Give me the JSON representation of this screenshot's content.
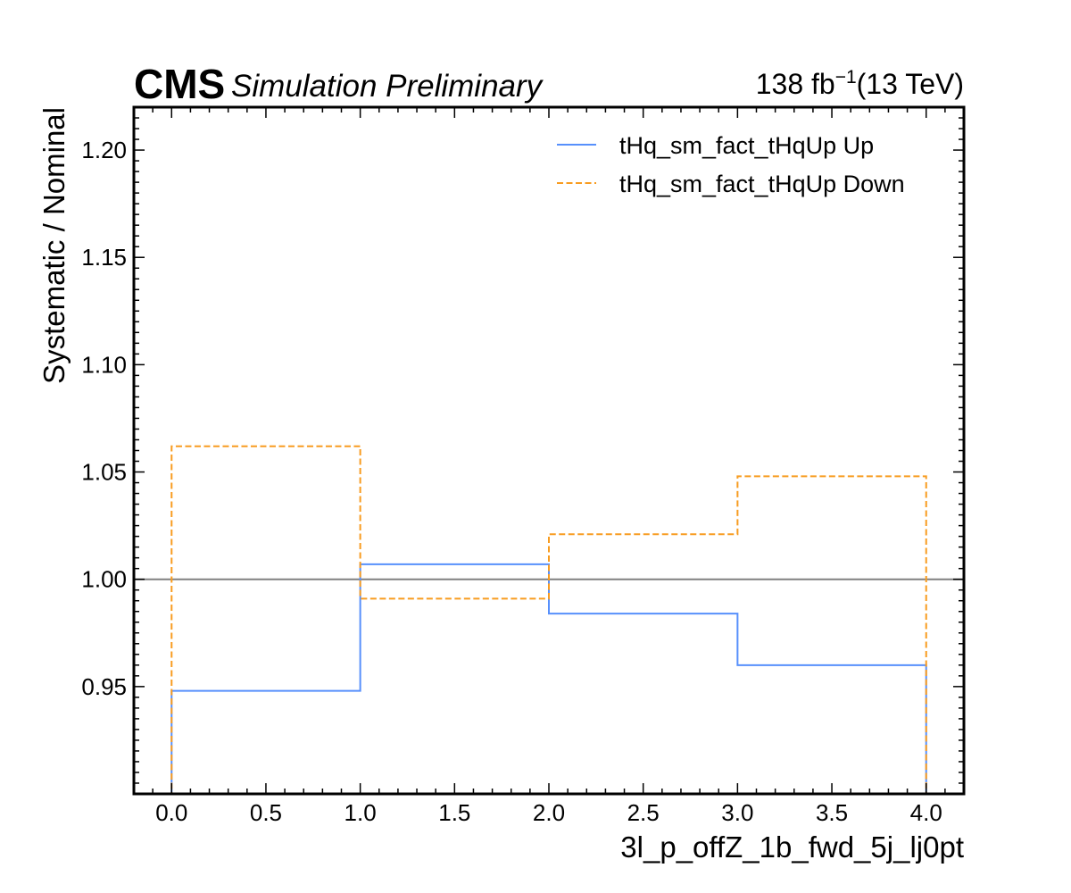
{
  "header": {
    "experiment": "CMS",
    "status": "Simulation Preliminary",
    "lumi_value": "138 fb",
    "lumi_exponent": "−1",
    "lumi_energy": "(13 TeV)"
  },
  "chart_data": {
    "type": "line",
    "style": "step",
    "xlabel": "3l_p_offZ_1b_fwd_5j_lj0pt",
    "ylabel": "Systematic / Nominal",
    "xlim": [
      -0.2,
      4.2
    ],
    "ylim": [
      0.9,
      1.22
    ],
    "x_ticks": [
      0.0,
      0.5,
      1.0,
      1.5,
      2.0,
      2.5,
      3.0,
      3.5,
      4.0
    ],
    "x_tick_labels": [
      "0.0",
      "0.5",
      "1.0",
      "1.5",
      "2.0",
      "2.5",
      "3.0",
      "3.5",
      "4.0"
    ],
    "y_ticks": [
      0.95,
      1.0,
      1.05,
      1.1,
      1.15,
      1.2
    ],
    "y_tick_labels": [
      "0.95",
      "1.00",
      "1.05",
      "1.10",
      "1.15",
      "1.20"
    ],
    "bin_edges": [
      0,
      1,
      2,
      3,
      4
    ],
    "reference_line": {
      "y": 1.0,
      "color": "#808080"
    },
    "legend_position": "top-right",
    "series": [
      {
        "name": "tHq_sm_fact_tHqUp Up",
        "values": [
          0.948,
          1.007,
          0.984,
          0.96
        ],
        "color": "#5790fc",
        "dash": "solid"
      },
      {
        "name": "tHq_sm_fact_tHqUp Down",
        "values": [
          1.062,
          0.991,
          1.021,
          1.048
        ],
        "color": "#f89c20",
        "dash": "dashed"
      }
    ]
  }
}
